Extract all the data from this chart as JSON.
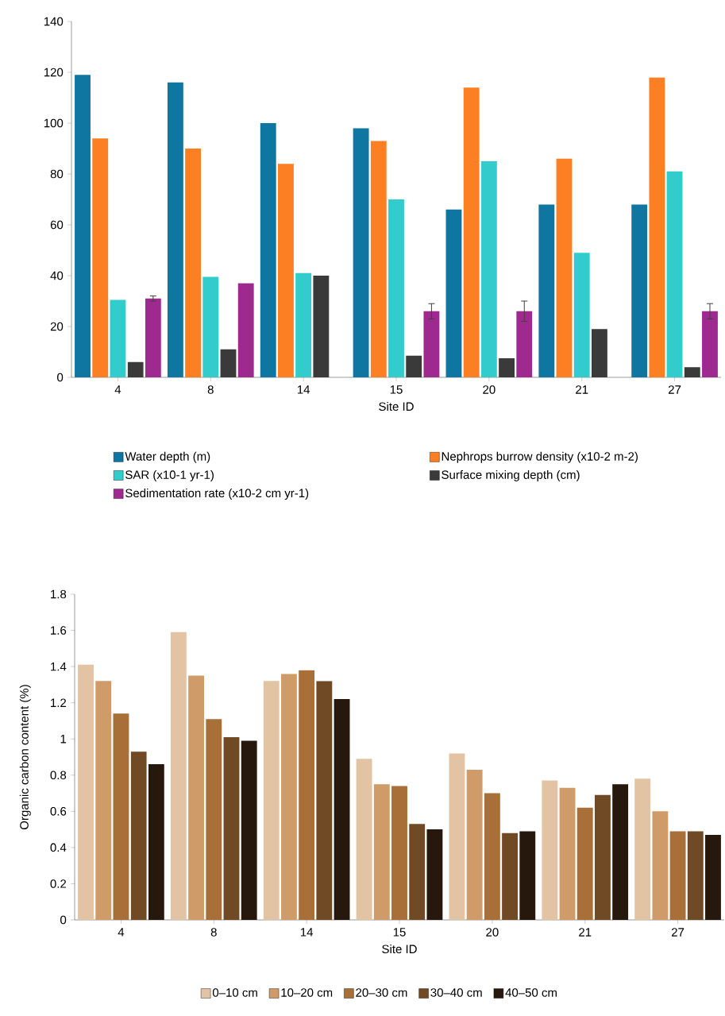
{
  "chart_data": [
    {
      "type": "bar",
      "xlabel": "Site ID",
      "categories": [
        "4",
        "8",
        "14",
        "15",
        "20",
        "21",
        "27"
      ],
      "ylim": [
        0,
        140
      ],
      "yticks": [
        0,
        20,
        40,
        60,
        80,
        100,
        120,
        140
      ],
      "legend": "bottom",
      "grid": false,
      "series": [
        {
          "name": "Water depth (m)",
          "color": "#0e76a0",
          "values": [
            119,
            116,
            100,
            98,
            66,
            68,
            68
          ]
        },
        {
          "name": "Nephrops burrow density (x10-2 m-2)",
          "color": "#fd7f23",
          "values": [
            94,
            90,
            84,
            93,
            114,
            86,
            118
          ]
        },
        {
          "name": "SAR (x10-1 yr-1)",
          "color": "#33cccc",
          "values": [
            30.5,
            39.5,
            41,
            70,
            85,
            49,
            81
          ]
        },
        {
          "name": "Surface mixing depth (cm)",
          "color": "#3a3a3a",
          "values": [
            6,
            11,
            40,
            8.5,
            7.5,
            19,
            4
          ]
        },
        {
          "name": "Sedimentation rate (x10-2 cm yr-1)",
          "color": "#9e2a8f",
          "values": [
            31,
            37,
            null,
            26,
            26,
            null,
            26
          ],
          "errors": [
            1,
            null,
            null,
            3,
            4,
            null,
            3
          ]
        }
      ]
    },
    {
      "type": "bar",
      "xlabel": "Site ID",
      "ylabel": "Organic carbon content (%)",
      "categories": [
        "4",
        "8",
        "14",
        "15",
        "20",
        "21",
        "27"
      ],
      "ylim": [
        0,
        1.8
      ],
      "yticks": [
        0,
        0.2,
        0.4,
        0.6,
        0.8,
        1,
        1.2,
        1.4,
        1.6,
        1.8
      ],
      "legend": "bottom",
      "grid": false,
      "series": [
        {
          "name": "0–10 cm",
          "color": "#e2c3a3",
          "values": [
            1.41,
            1.59,
            1.32,
            0.89,
            0.92,
            0.77,
            0.78
          ]
        },
        {
          "name": "10–20 cm",
          "color": "#cf9c69",
          "values": [
            1.32,
            1.35,
            1.36,
            0.75,
            0.83,
            0.73,
            0.6
          ]
        },
        {
          "name": "20–30 cm",
          "color": "#a86f38",
          "values": [
            1.14,
            1.11,
            1.38,
            0.74,
            0.7,
            0.62,
            0.49
          ]
        },
        {
          "name": "30–40 cm",
          "color": "#704a25",
          "values": [
            0.93,
            1.01,
            1.32,
            0.53,
            0.48,
            0.69,
            0.49
          ]
        },
        {
          "name": "40–50 cm",
          "color": "#27180d",
          "values": [
            0.86,
            0.99,
            1.22,
            0.5,
            0.49,
            0.75,
            0.47
          ]
        }
      ]
    }
  ]
}
